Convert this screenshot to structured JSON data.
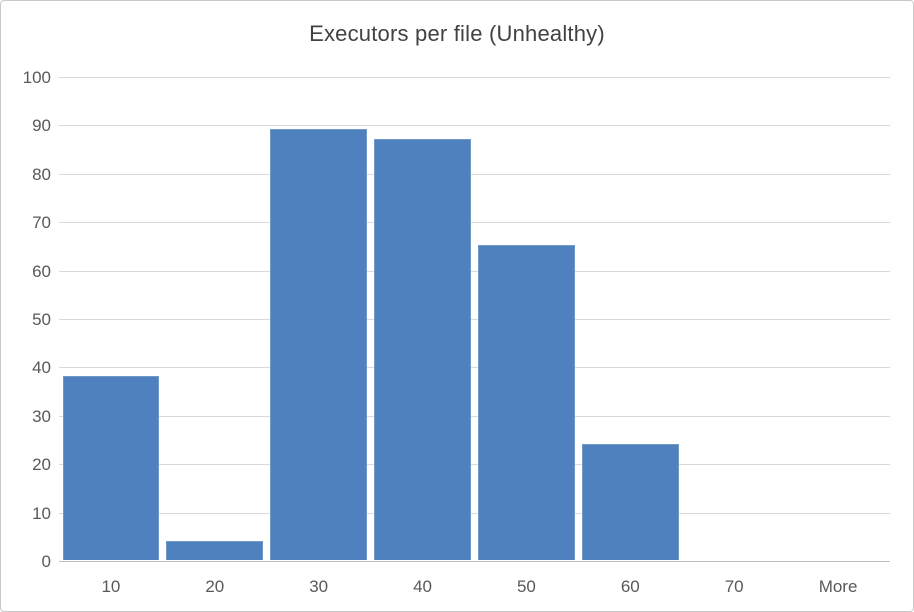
{
  "chart_data": {
    "type": "bar",
    "title": "Executors per file (Unhealthy)",
    "categories": [
      "10",
      "20",
      "30",
      "40",
      "50",
      "60",
      "70",
      "More"
    ],
    "values": [
      38,
      4,
      89,
      87,
      65,
      24,
      0,
      0
    ],
    "xlabel": "",
    "ylabel": "",
    "ylim": [
      0,
      100
    ],
    "ytick_step": 10,
    "grid": true,
    "legend": false,
    "colors": {
      "bar_fill": "#4e81bd",
      "bar_edge": "#7199c8",
      "gridline": "#d9d9d9",
      "axis_line": "#bfbfbf",
      "tick_label": "#595959",
      "title": "#424242",
      "chart_border": "#c9c9c9",
      "background": "#ffffff"
    }
  }
}
